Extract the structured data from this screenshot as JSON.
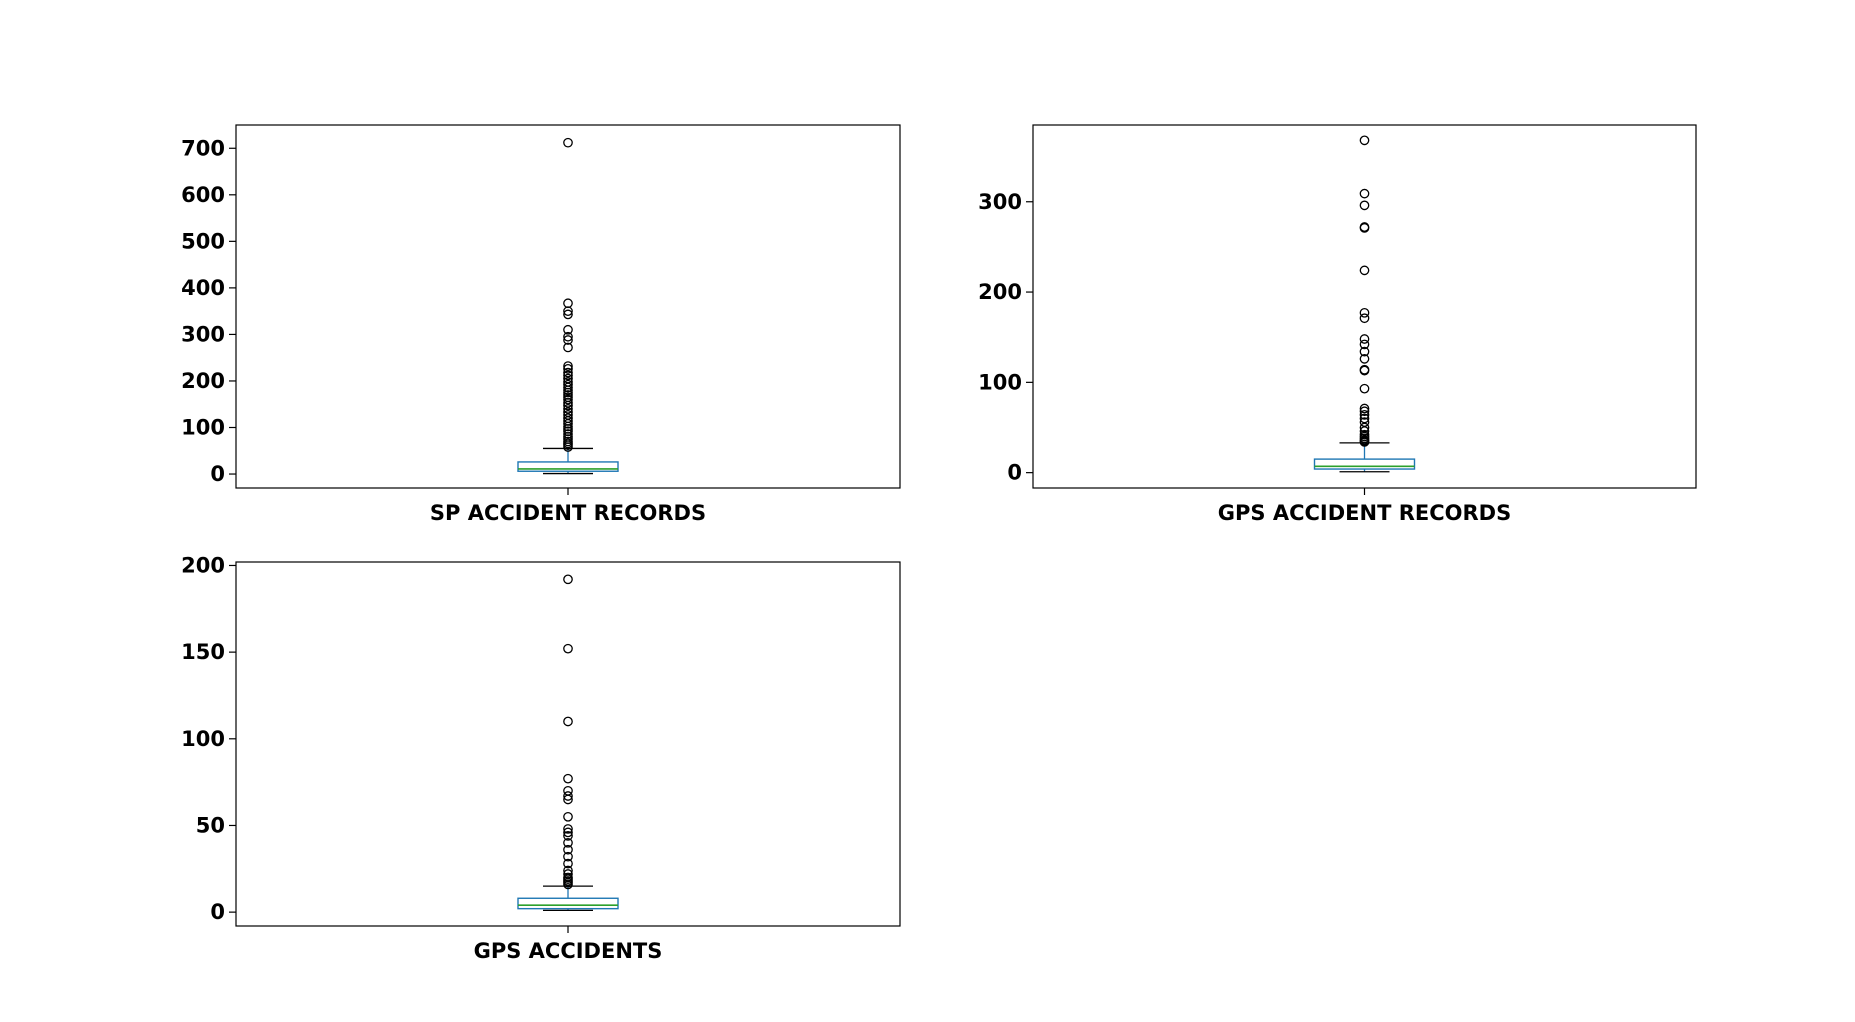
{
  "colors": {
    "box": "#1f77b4",
    "median": "#2ca02c",
    "whisker": "#000000",
    "flier": "#000000",
    "frame": "#000000"
  },
  "chart_data": [
    {
      "type": "box",
      "xlabel": "SP ACCIDENT RECORDS",
      "ylim": [
        -30,
        750
      ],
      "yticks": [
        0,
        100,
        200,
        300,
        400,
        500,
        600,
        700
      ],
      "box": {
        "whislo": 1,
        "q1": 6,
        "med": 11,
        "q3": 26,
        "whishi": 55
      },
      "fliers": [
        712,
        367,
        350,
        343,
        310,
        295,
        288,
        272,
        232,
        226,
        218,
        212,
        205,
        198,
        192,
        186,
        180,
        175,
        170,
        165,
        160,
        153,
        147,
        140,
        133,
        127,
        120,
        114,
        108,
        102,
        97,
        92,
        86,
        80,
        75,
        70,
        66,
        62,
        58
      ]
    },
    {
      "type": "box",
      "xlabel": "GPS ACCIDENT RECORDS",
      "ylim": [
        -17,
        385
      ],
      "yticks": [
        0,
        100,
        200,
        300
      ],
      "box": {
        "whislo": 1,
        "q1": 4,
        "med": 7,
        "q3": 15,
        "whishi": 33
      },
      "fliers": [
        368,
        309,
        296,
        272,
        271,
        224,
        177,
        171,
        148,
        142,
        134,
        126,
        114,
        113,
        93,
        71,
        68,
        64,
        60,
        56,
        50,
        46,
        42,
        40,
        38,
        36,
        35,
        34
      ]
    },
    {
      "type": "box",
      "xlabel": "GPS ACCIDENTS",
      "ylim": [
        -8,
        202
      ],
      "yticks": [
        0,
        50,
        100,
        150,
        200
      ],
      "box": {
        "whislo": 1,
        "q1": 2,
        "med": 4,
        "q3": 8,
        "whishi": 15
      },
      "fliers": [
        192,
        152,
        110,
        77,
        70,
        67,
        65,
        55,
        48,
        46,
        44,
        40,
        36,
        32,
        28,
        24,
        22,
        20,
        19,
        18,
        17,
        16
      ]
    }
  ]
}
